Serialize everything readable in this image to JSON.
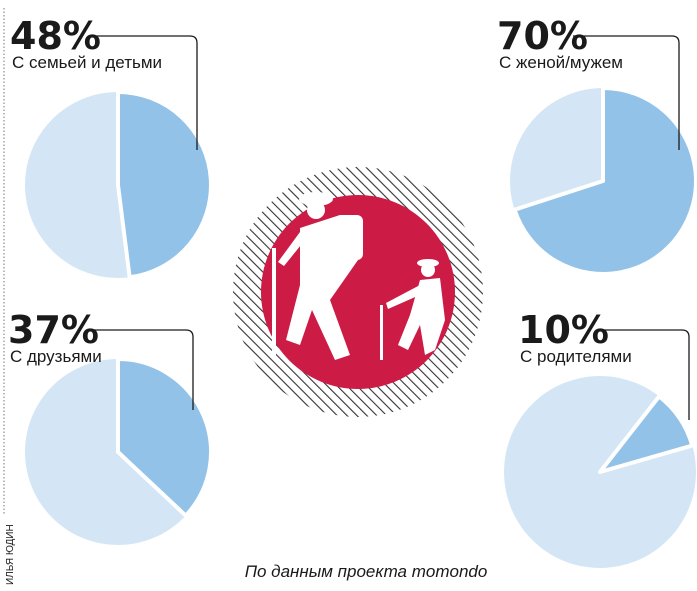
{
  "chart_data": [
    {
      "type": "pie",
      "categories": [
        "С семьей и детьми"
      ],
      "values": [
        48
      ],
      "value_labels": [
        "48%"
      ],
      "color": "#93c2e8",
      "rest_color": "#d4e6f5",
      "startangle": 0
    },
    {
      "type": "pie",
      "categories": [
        "С женой/мужем"
      ],
      "values": [
        70
      ],
      "value_labels": [
        "70%"
      ],
      "color": "#93c2e8",
      "rest_color": "#d4e6f5",
      "startangle": 0
    },
    {
      "type": "pie",
      "categories": [
        "С друзьями"
      ],
      "values": [
        37
      ],
      "value_labels": [
        "37%"
      ],
      "color": "#93c2e8",
      "rest_color": "#d4e6f5",
      "startangle": 0
    },
    {
      "type": "pie",
      "categories": [
        "С родителями"
      ],
      "values": [
        10
      ],
      "value_labels": [
        "10%"
      ],
      "color": "#93c2e8",
      "rest_color": "#d4e6f5",
      "startangle": 38
    }
  ],
  "source": "По данным проекта momondo",
  "credit": "ИЛЬЯ ЮДИН"
}
